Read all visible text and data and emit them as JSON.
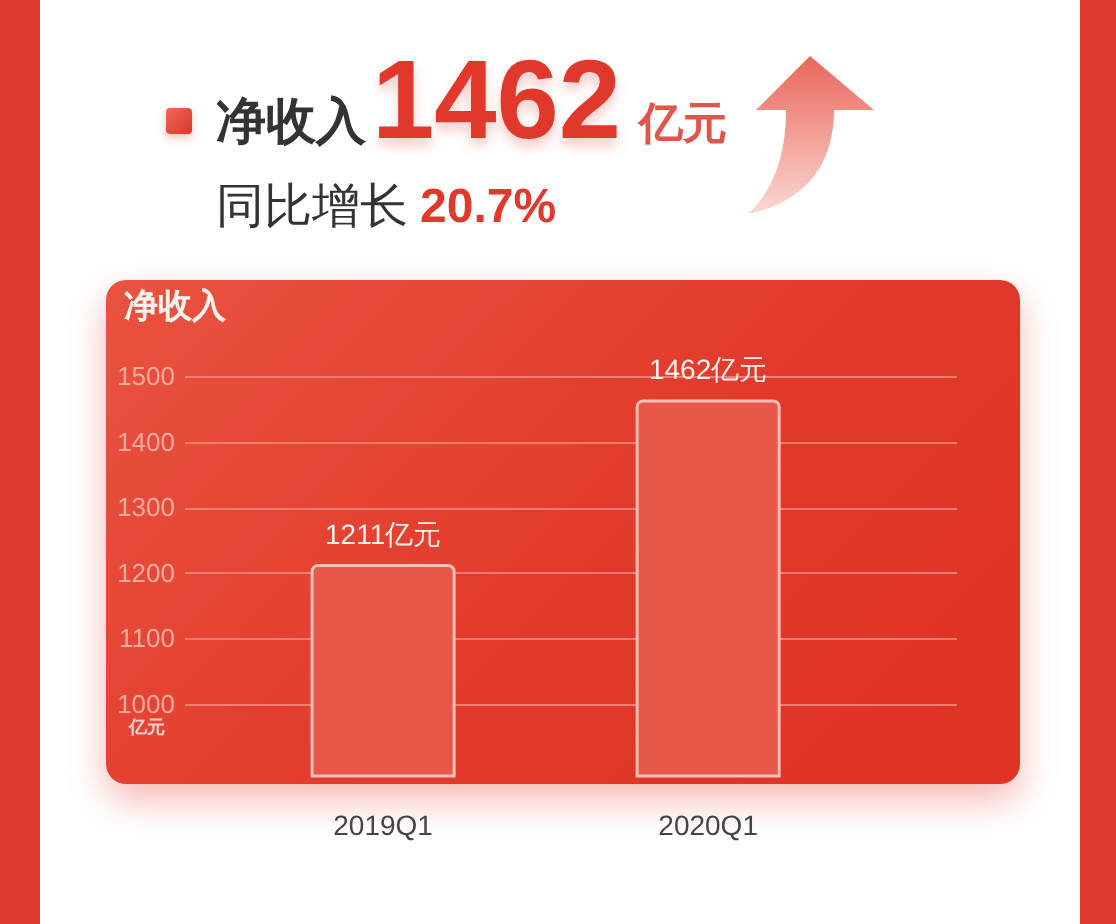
{
  "chart_data": {
    "type": "bar",
    "title": "净收入",
    "ylabel": "亿元",
    "annotations": [
      "净收入",
      "1462",
      "亿元",
      "同比增长",
      "20.7%"
    ],
    "categories": [
      "2019Q1",
      "2020Q1"
    ],
    "values": [
      1211,
      1462
    ],
    "value_labels": [
      "1211亿元",
      "1462亿元"
    ],
    "color": "#e8584a",
    "ylim": [
      890,
      1500
    ],
    "yticks": [
      1000,
      1100,
      1200,
      1300,
      1400,
      1500
    ],
    "grid": "y"
  }
}
